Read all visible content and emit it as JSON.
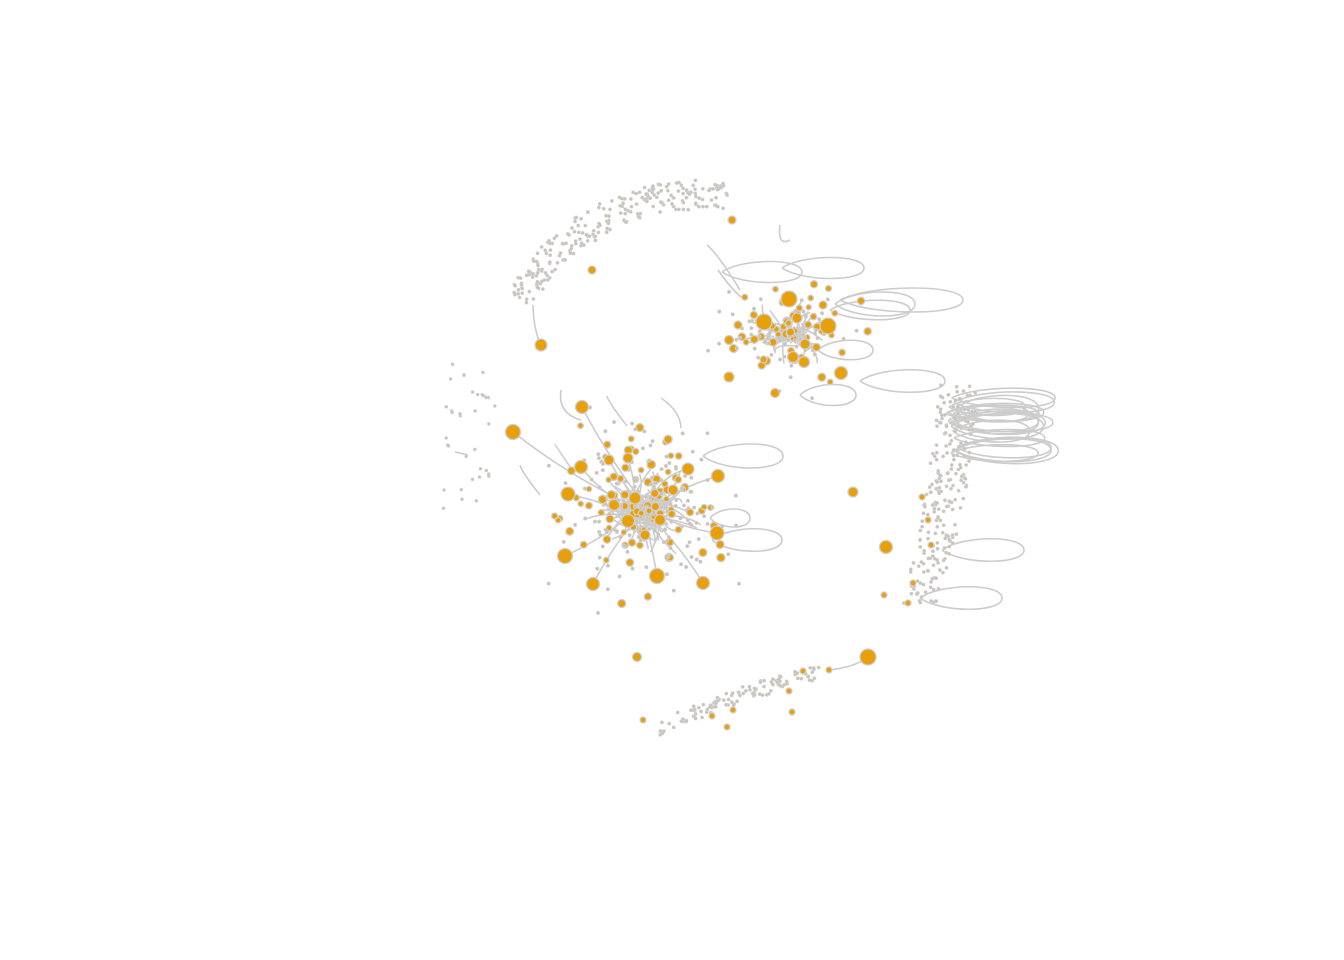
{
  "figure": {
    "kind": "network-graph",
    "background_color": "#ffffff",
    "node_color": "#e8a00a",
    "leaf_node_color": "#c8c2b8",
    "edge_color": "#cccccc"
  },
  "components": [
    {
      "name": "central-cluster",
      "self_loops": 3
    },
    {
      "name": "upper-right-cluster",
      "self_loops": 8
    },
    {
      "name": "right-arc",
      "self_loops": 20
    },
    {
      "name": "top-arc",
      "self_loops": 0
    },
    {
      "name": "bottom-arc",
      "self_loops": 0
    },
    {
      "name": "left-scatter",
      "self_loops": 0
    }
  ]
}
